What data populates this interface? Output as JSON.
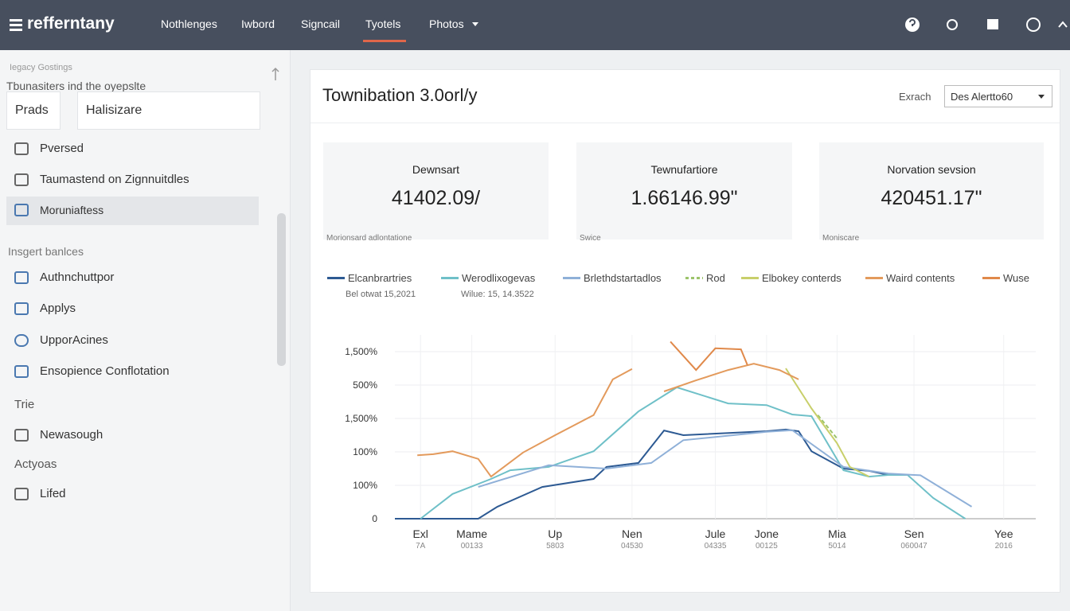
{
  "nav": {
    "brand": "refferntany",
    "items": [
      "Nothlenges",
      "Iwbord",
      "Signcail",
      "Tyotels",
      "Photos"
    ],
    "active": 3
  },
  "sidebar": {
    "caption": "Iegacy Gostings",
    "heading": "Tbunasiters ind the oyepslte",
    "inputs": [
      "Prads",
      "Halisizare"
    ],
    "items": [
      "Pversed",
      "Taumastend on Zignnuitdles",
      "Moruniaftess"
    ],
    "section1": "Insgert banlces",
    "items2": [
      "Authnchuttpor",
      "Applys",
      "UpporAcines",
      "Ensopience Conflotation"
    ],
    "section2": "Trie",
    "items3": [
      "Newasough"
    ],
    "section3": "Actyoas",
    "items4": [
      "Lifed"
    ]
  },
  "card": {
    "title": "Townibation 3.0orl/y",
    "filter_label": "Exrach",
    "select": "Des Alertto60"
  },
  "stats": [
    {
      "label": "Dewnsart",
      "value": "41402.09/",
      "note": "Morionsard adlontatione"
    },
    {
      "label": "Tewnufartiore",
      "value": "1.66146.99\"",
      "note": "Swice"
    },
    {
      "label": "Norvation sevsion",
      "value": "420451.17\"",
      "note": "Moniscare"
    }
  ],
  "legend_notes": [
    "Bel otwat 15,2021",
    "Wilue: 15, 14.3522"
  ],
  "chart_data": {
    "type": "line",
    "xlim": [
      0,
      100
    ],
    "xticks": [
      {
        "value": 4,
        "label": "Exl"
      },
      {
        "value": 12,
        "label": "Mame"
      },
      {
        "value": 25,
        "label": "Up"
      },
      {
        "value": 37,
        "label": "Nen"
      },
      {
        "value": 50,
        "label": "Jule"
      },
      {
        "value": 58,
        "label": "Jone"
      },
      {
        "value": 69,
        "label": "Mia"
      },
      {
        "value": 81,
        "label": "Sen"
      },
      {
        "value": 95,
        "label": "Yee"
      }
    ],
    "xtick_sublabels": [
      "7A",
      "00133",
      "5803",
      "04530",
      "04335",
      "00125",
      "5014",
      "060047",
      "2016"
    ],
    "ylim": [
      0,
      5.5
    ],
    "yticks": [
      {
        "value": 0,
        "label": "0"
      },
      {
        "value": 1,
        "label": "100%"
      },
      {
        "value": 2,
        "label": "100%"
      },
      {
        "value": 3,
        "label": "1,500%"
      },
      {
        "value": 4,
        "label": "500%"
      },
      {
        "value": 5,
        "label": "1,500%"
      }
    ],
    "grid": true,
    "series": [
      {
        "name": "Elcanbrartries",
        "color": "#2d5a93",
        "x": [
          0,
          13,
          16,
          23,
          31,
          33,
          38,
          42,
          45,
          58,
          61,
          63,
          65,
          70,
          74,
          77
        ],
        "values": [
          0,
          0,
          0.36,
          0.95,
          1.19,
          1.55,
          1.67,
          2.64,
          2.5,
          2.62,
          2.67,
          2.62,
          2.02,
          1.5,
          1.43,
          1.31
        ]
      },
      {
        "name": "Werodlixogevas",
        "color": "#6fc0c8",
        "x": [
          4,
          9,
          15,
          18,
          24,
          31,
          38,
          44,
          52,
          58,
          62,
          65,
          70,
          74,
          77,
          80,
          84,
          89
        ],
        "values": [
          0,
          0.74,
          1.19,
          1.45,
          1.55,
          2.02,
          3.21,
          3.93,
          3.45,
          3.4,
          3.12,
          3.07,
          1.45,
          1.26,
          1.31,
          1.31,
          0.62,
          0
        ]
      },
      {
        "name": "Brlethdstartadlos",
        "color": "#8fb0d8",
        "x": [
          13,
          24,
          33,
          40,
          45,
          58,
          62,
          70,
          77,
          82,
          90
        ],
        "values": [
          0.95,
          1.6,
          1.5,
          1.67,
          2.35,
          2.6,
          2.65,
          1.55,
          1.35,
          1.3,
          0.36
        ]
      },
      {
        "name": "Rod",
        "color": "#9cc46a",
        "dashed": true,
        "x": [
          66,
          69
        ],
        "values": [
          3.1,
          2.4
        ]
      },
      {
        "name": "Elbokey conterds",
        "color": "#c8cf6a",
        "x": [
          61,
          65,
          69,
          71,
          74
        ],
        "values": [
          4.5,
          3.3,
          2.26,
          1.55,
          1.26
        ]
      },
      {
        "name": "Waird contents",
        "color": "#e39a5c",
        "x": [
          3.5,
          6,
          9,
          13,
          15,
          20,
          25,
          31,
          34,
          37,
          38,
          42,
          47,
          52,
          56,
          60,
          63
        ],
        "values": [
          1.9,
          1.93,
          2.02,
          1.79,
          1.26,
          1.98,
          2.5,
          3.1,
          4.17,
          4.48,
          null,
          3.81,
          4.14,
          4.45,
          4.64,
          4.45,
          4.17
        ]
      },
      {
        "name": "Wuse",
        "color": "#e0894a",
        "x": [
          43,
          47,
          50,
          54,
          55
        ],
        "values": [
          5.3,
          4.45,
          5.1,
          5.07,
          4.6
        ]
      }
    ]
  }
}
